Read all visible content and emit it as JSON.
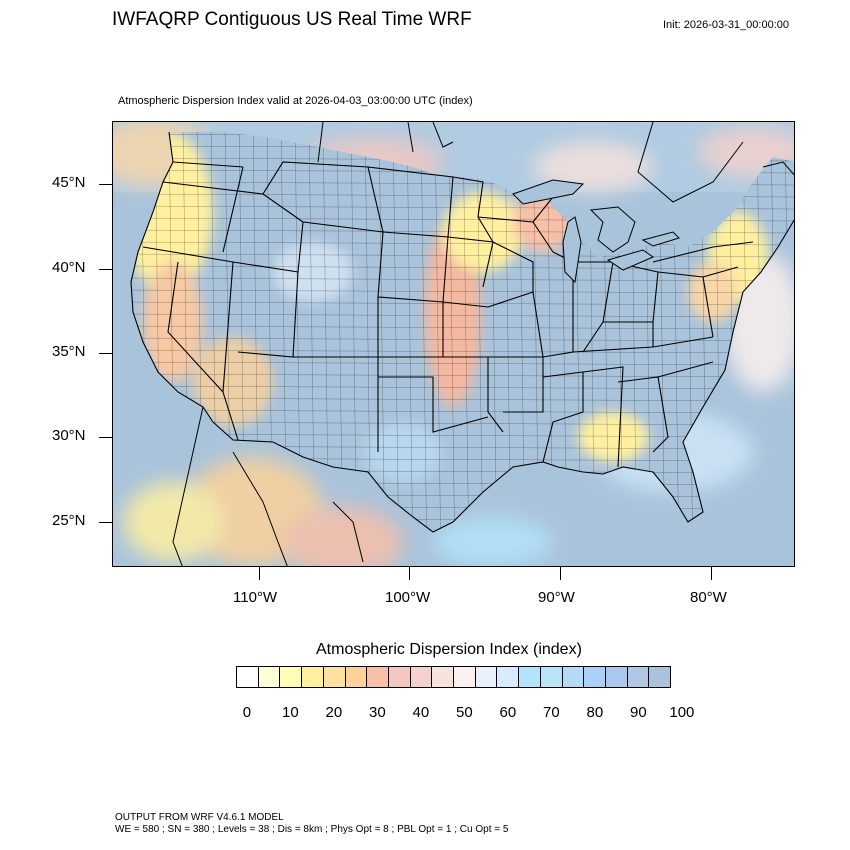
{
  "header": {
    "title": "IWFAQRP Contiguous US Real Time WRF",
    "init": "Init: 2026-03-31_00:00:00",
    "subtitle": "Atmospheric Dispersion Index valid at 2026-04-03_03:00:00 UTC   (index)"
  },
  "map": {
    "lat_labels": [
      "45°N",
      "40°N",
      "35°N",
      "30°N",
      "25°N"
    ],
    "lon_labels": [
      "110°W",
      "100°W",
      "90°W",
      "80°W"
    ],
    "colors": {
      "ocean_water": "#a9c3db",
      "borders": "#000000",
      "low_index": "#fff3b0",
      "mid_index": "#f6b9a0",
      "high_index": "#a9c3db"
    }
  },
  "legend": {
    "title": "Atmospheric Dispersion Index  (index)",
    "tick_labels": [
      "0",
      "10",
      "20",
      "30",
      "40",
      "50",
      "60",
      "70",
      "80",
      "90",
      "100"
    ],
    "colors": [
      "#ffffff",
      "#ffffd6",
      "#ffffb3",
      "#fff0a0",
      "#ffe0a0",
      "#fcd29a",
      "#f8c0a8",
      "#f2c8c0",
      "#f3d2cc",
      "#f7e2dc",
      "#fcf0ee",
      "#e8f0fb",
      "#d8eafb",
      "#b3e4fb",
      "#b8e4f8",
      "#b3dbf8",
      "#aad0f8",
      "#a8c8f0",
      "#b0c8e4",
      "#a9c3db"
    ]
  },
  "footer": {
    "line1": "OUTPUT FROM WRF V4.6.1 MODEL",
    "line2": "WE = 580 ; SN = 380 ; Levels = 38 ; Dis = 8km ; Phys Opt = 8 ; PBL Opt = 1 ; Cu Opt = 5"
  }
}
